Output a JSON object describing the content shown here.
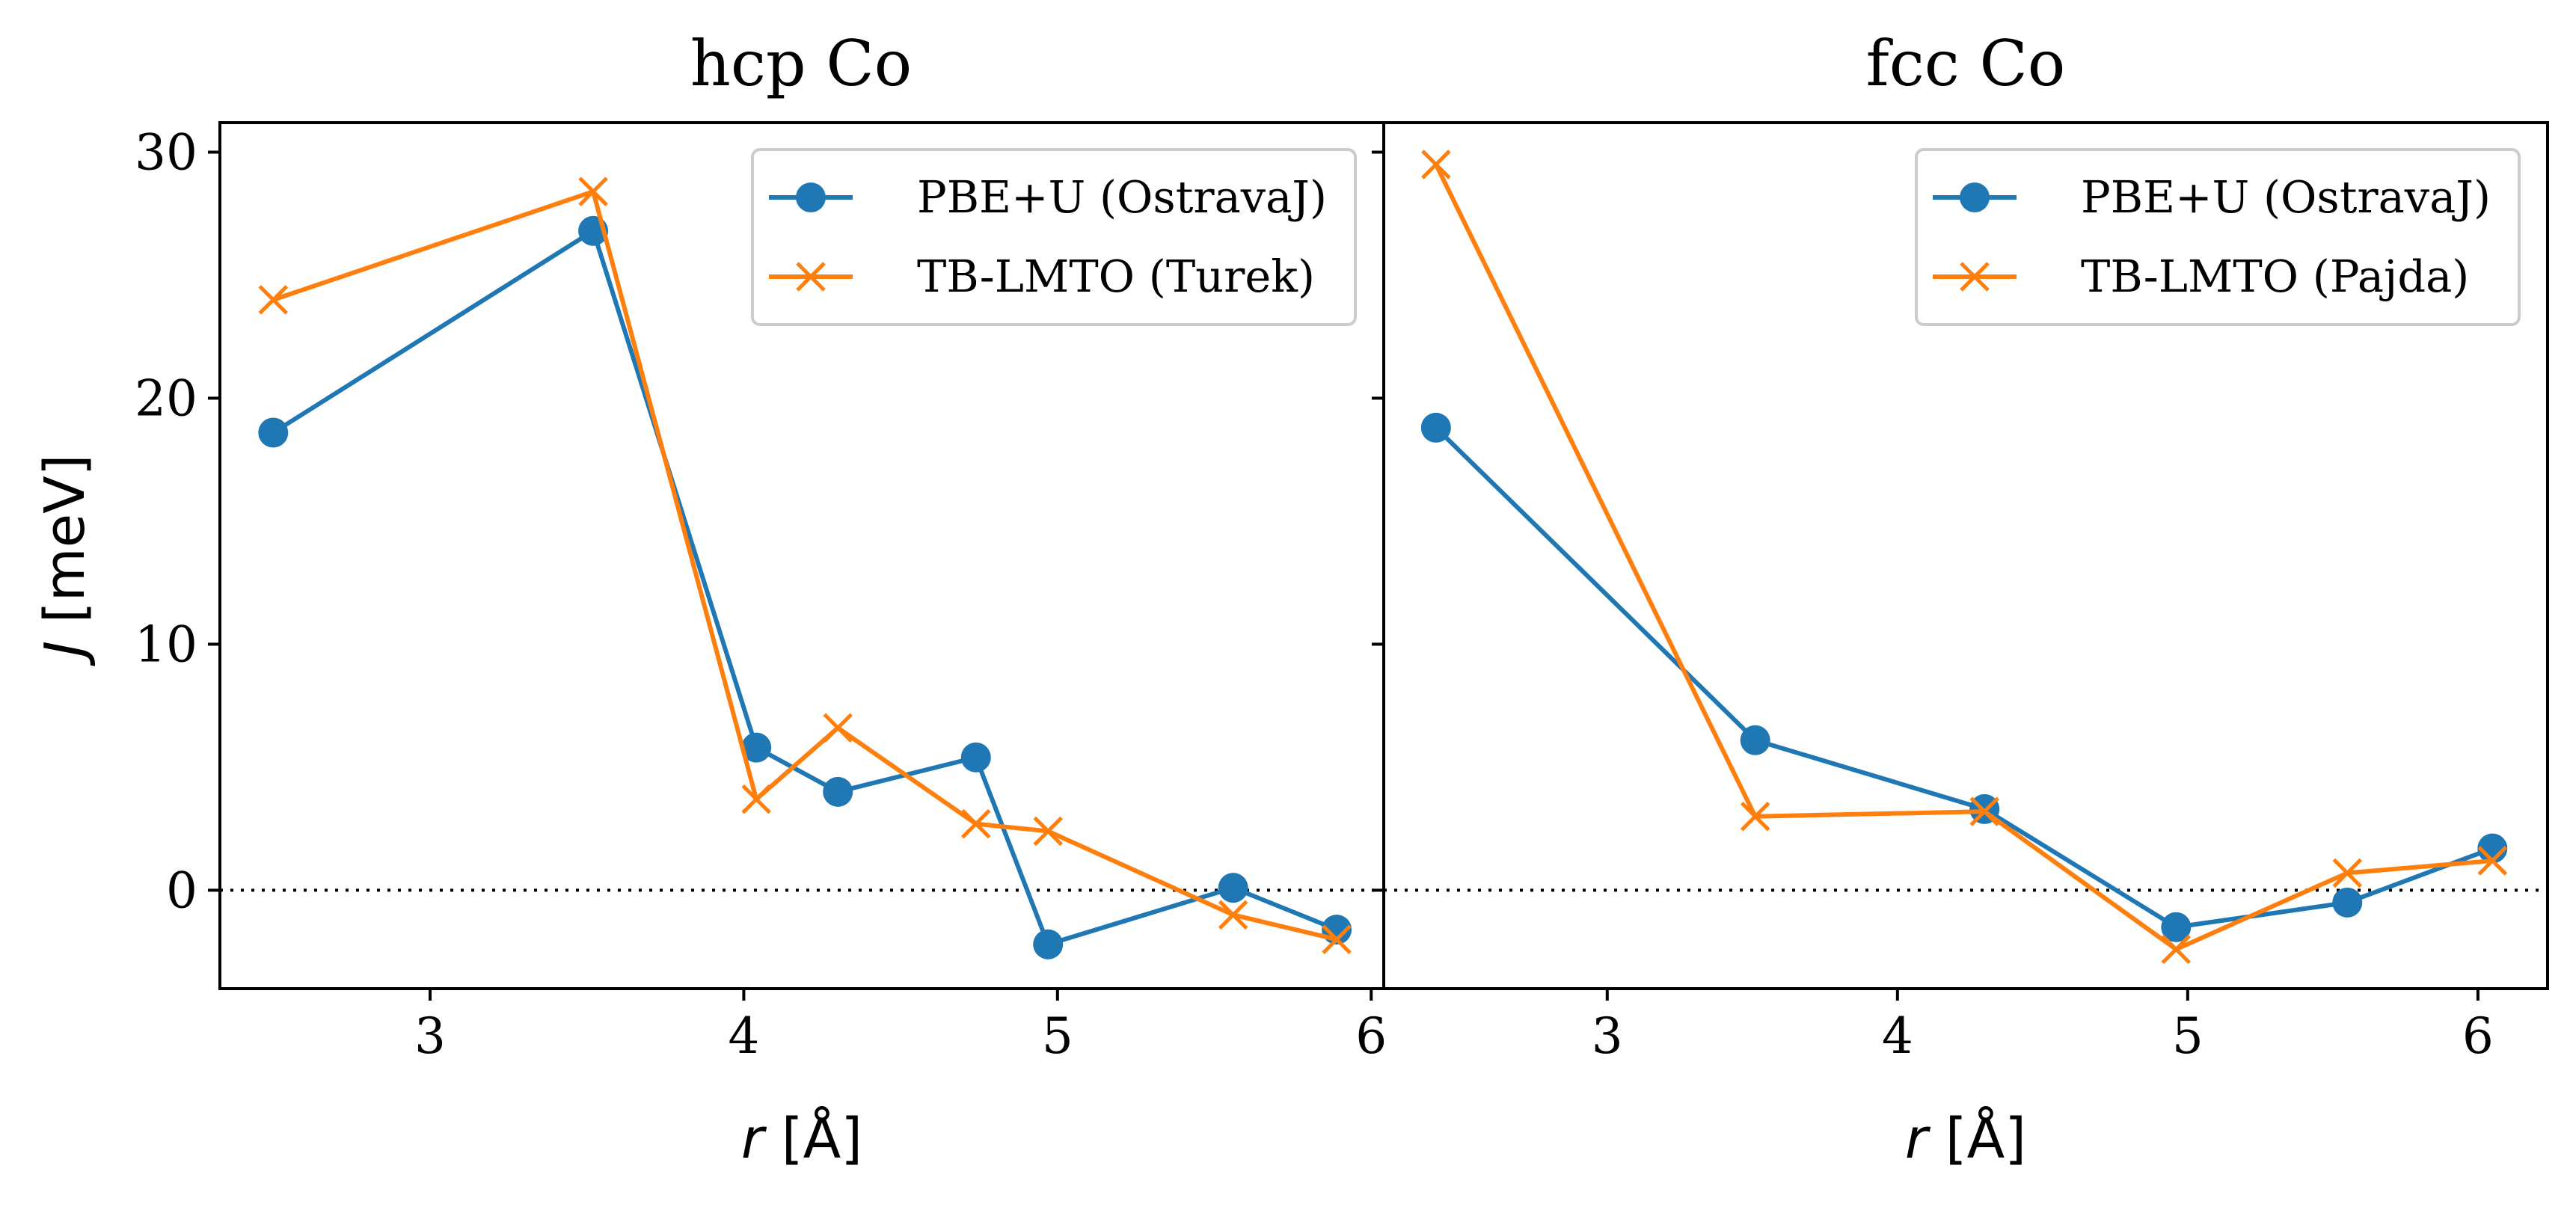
{
  "figure": {
    "ylabel_symbol": "J",
    "ylabel_unit": " [meV]",
    "xlabel_symbol": "r",
    "xlabel_unit": " [Å]",
    "colors": {
      "series1": "#1f77b4",
      "series2": "#ff7f0e",
      "axis": "#000000"
    },
    "zero_line_style": "dotted"
  },
  "chart_data": [
    {
      "type": "line",
      "title": "hcp Co",
      "xlabel": "r [Å]",
      "ylabel": "J [meV]",
      "xlim": [
        2.33,
        6.04
      ],
      "ylim": [
        -4.0,
        31.2
      ],
      "xticks": [
        3,
        4,
        5,
        6
      ],
      "yticks": [
        0,
        10,
        20,
        30
      ],
      "legend_position": "top-right",
      "zero_line": true,
      "series": [
        {
          "name": "PBE+U (OstravaJ)",
          "marker": "circle",
          "color": "#1f77b4",
          "x": [
            2.5,
            3.52,
            4.04,
            4.3,
            4.74,
            4.97,
            5.56,
            5.89
          ],
          "y": [
            18.6,
            26.8,
            5.8,
            4.0,
            5.4,
            -2.2,
            0.1,
            -1.6
          ]
        },
        {
          "name": "TB-LMTO (Turek)",
          "marker": "x",
          "color": "#ff7f0e",
          "x": [
            2.5,
            3.52,
            4.04,
            4.3,
            4.74,
            4.97,
            5.56,
            5.89
          ],
          "y": [
            24.0,
            28.4,
            3.7,
            6.6,
            2.7,
            2.4,
            -1.0,
            -2.0
          ]
        }
      ]
    },
    {
      "type": "line",
      "title": "fcc Co",
      "xlabel": "r [Å]",
      "ylabel": "",
      "xlim": [
        2.23,
        6.24
      ],
      "ylim": [
        -4.0,
        31.2
      ],
      "xticks": [
        3,
        4,
        5,
        6
      ],
      "yticks": [
        0,
        10,
        20,
        30
      ],
      "legend_position": "top-right",
      "zero_line": true,
      "series": [
        {
          "name": "PBE+U (OstravaJ)",
          "marker": "circle",
          "color": "#1f77b4",
          "x": [
            2.41,
            3.51,
            4.3,
            4.96,
            5.55,
            6.05
          ],
          "y": [
            18.8,
            6.1,
            3.3,
            -1.5,
            -0.5,
            1.7
          ]
        },
        {
          "name": "TB-LMTO (Pajda)",
          "marker": "x",
          "color": "#ff7f0e",
          "x": [
            2.41,
            3.51,
            4.3,
            4.96,
            5.55,
            6.05
          ],
          "y": [
            29.5,
            3.0,
            3.2,
            -2.4,
            0.7,
            1.2
          ]
        }
      ]
    }
  ]
}
